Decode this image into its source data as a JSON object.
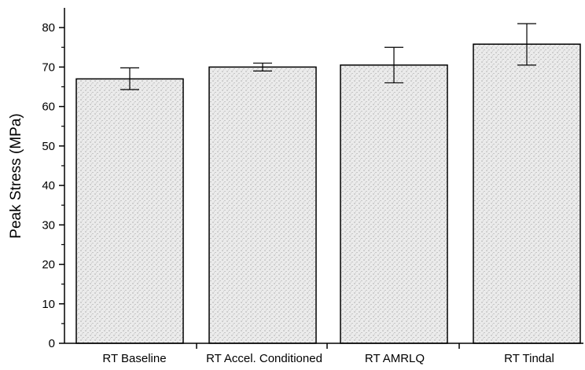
{
  "chart_data": {
    "type": "bar",
    "title": "",
    "xlabel": "",
    "ylabel": "Peak Stress (MPa)",
    "ylim": [
      0,
      85
    ],
    "yticks": [
      0,
      10,
      20,
      30,
      40,
      50,
      60,
      70,
      80
    ],
    "yticks_minor": [
      5,
      15,
      25,
      35,
      45,
      55,
      65,
      75
    ],
    "grid": false,
    "legend": "none",
    "categories": [
      "RT Baseline",
      "RT Accel. Conditioned",
      "RT AMRLQ",
      "RT Tindal"
    ],
    "values": [
      67.0,
      70.0,
      70.5,
      75.8
    ],
    "error_low": [
      64.3,
      69.0,
      66.0,
      70.5
    ],
    "error_high": [
      69.8,
      71.0,
      75.0,
      81.0
    ],
    "bar_fill": "#ebebeb",
    "stipple_color": "#8a8a8a",
    "edge_color": "#000000"
  }
}
